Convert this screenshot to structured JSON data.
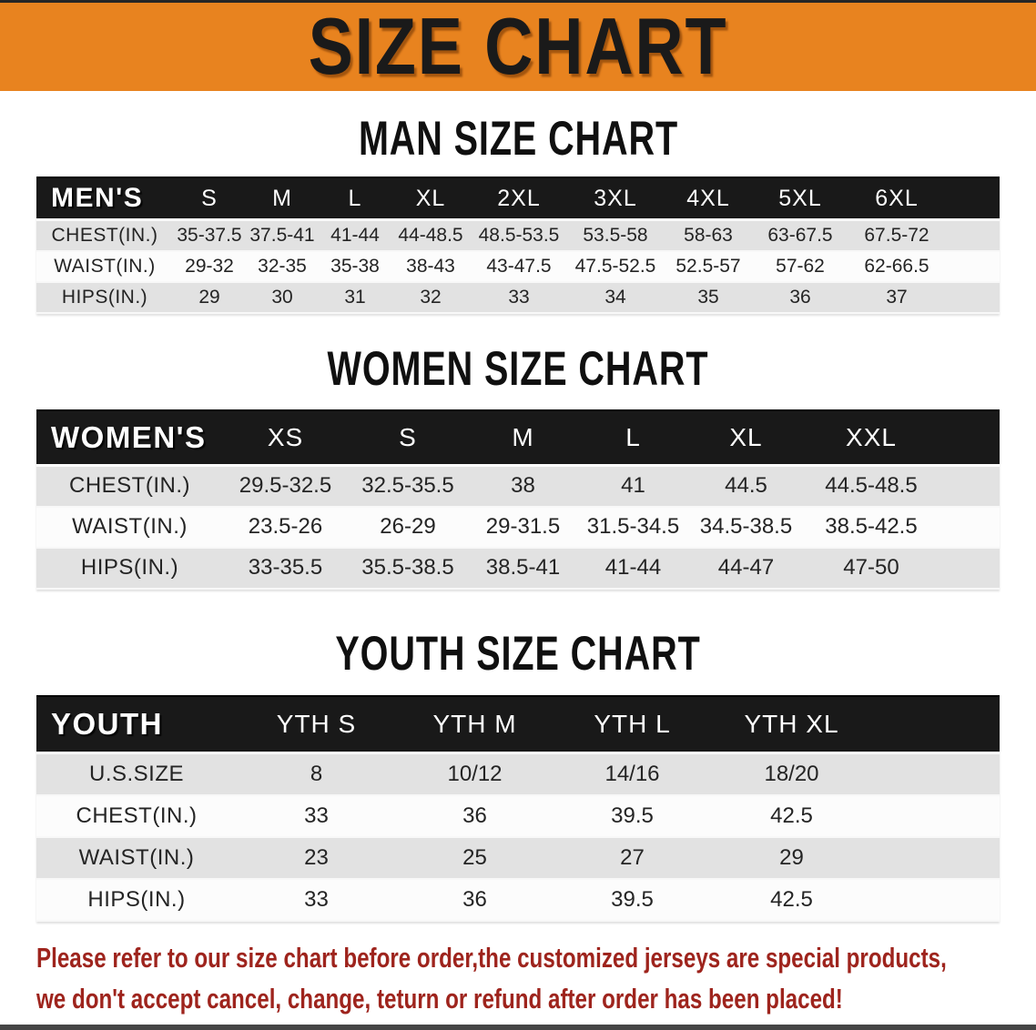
{
  "banner": {
    "title": "SIZE CHART"
  },
  "colors": {
    "banner_bg": "#e8831f",
    "header_bar": "#191919",
    "row_gray": "#e2e2e2",
    "row_white": "#fcfcfc",
    "note_red": "#9e241d"
  },
  "sections": [
    {
      "id": "men",
      "title": "MAN SIZE CHART",
      "group_label": "MEN'S",
      "columns": [
        "S",
        "M",
        "L",
        "XL",
        "2XL",
        "3XL",
        "4XL",
        "5XL",
        "6XL"
      ],
      "rows": [
        {
          "label": "CHEST(IN.)",
          "values": [
            "35-37.5",
            "37.5-41",
            "41-44",
            "44-48.5",
            "48.5-53.5",
            "53.5-58",
            "58-63",
            "63-67.5",
            "67.5-72"
          ]
        },
        {
          "label": "WAIST(IN.)",
          "values": [
            "29-32",
            "32-35",
            "35-38",
            "38-43",
            "43-47.5",
            "47.5-52.5",
            "52.5-57",
            "57-62",
            "62-66.5"
          ]
        },
        {
          "label": "HIPS(IN.)",
          "values": [
            "29",
            "30",
            "31",
            "32",
            "33",
            "34",
            "35",
            "36",
            "37"
          ]
        }
      ]
    },
    {
      "id": "women",
      "title": "WOMEN SIZE CHART",
      "group_label": "WOMEN'S",
      "columns": [
        "XS",
        "S",
        "M",
        "L",
        "XL",
        "XXL"
      ],
      "rows": [
        {
          "label": "CHEST(IN.)",
          "values": [
            "29.5-32.5",
            "32.5-35.5",
            "38",
            "41",
            "44.5",
            "44.5-48.5"
          ]
        },
        {
          "label": "WAIST(IN.)",
          "values": [
            "23.5-26",
            "26-29",
            "29-31.5",
            "31.5-34.5",
            "34.5-38.5",
            "38.5-42.5"
          ]
        },
        {
          "label": "HIPS(IN.)",
          "values": [
            "33-35.5",
            "35.5-38.5",
            "38.5-41",
            "41-44",
            "44-47",
            "47-50"
          ]
        }
      ]
    },
    {
      "id": "youth",
      "title": "YOUTH SIZE CHART",
      "group_label": "YOUTH",
      "columns": [
        "YTH S",
        "YTH M",
        "YTH L",
        "YTH XL"
      ],
      "rows": [
        {
          "label": "U.S.SIZE",
          "values": [
            "8",
            "10/12",
            "14/16",
            "18/20"
          ]
        },
        {
          "label": "CHEST(IN.)",
          "values": [
            "33",
            "36",
            "39.5",
            "42.5"
          ]
        },
        {
          "label": "WAIST(IN.)",
          "values": [
            "23",
            "25",
            "27",
            "29"
          ]
        },
        {
          "label": "HIPS(IN.)",
          "values": [
            "33",
            "36",
            "39.5",
            "42.5"
          ]
        }
      ]
    }
  ],
  "note": {
    "line1": "Please refer to our size chart before order,the customized jerseys are special products,",
    "line2": "we don't accept cancel, change, teturn or refund after order has been placed!"
  }
}
